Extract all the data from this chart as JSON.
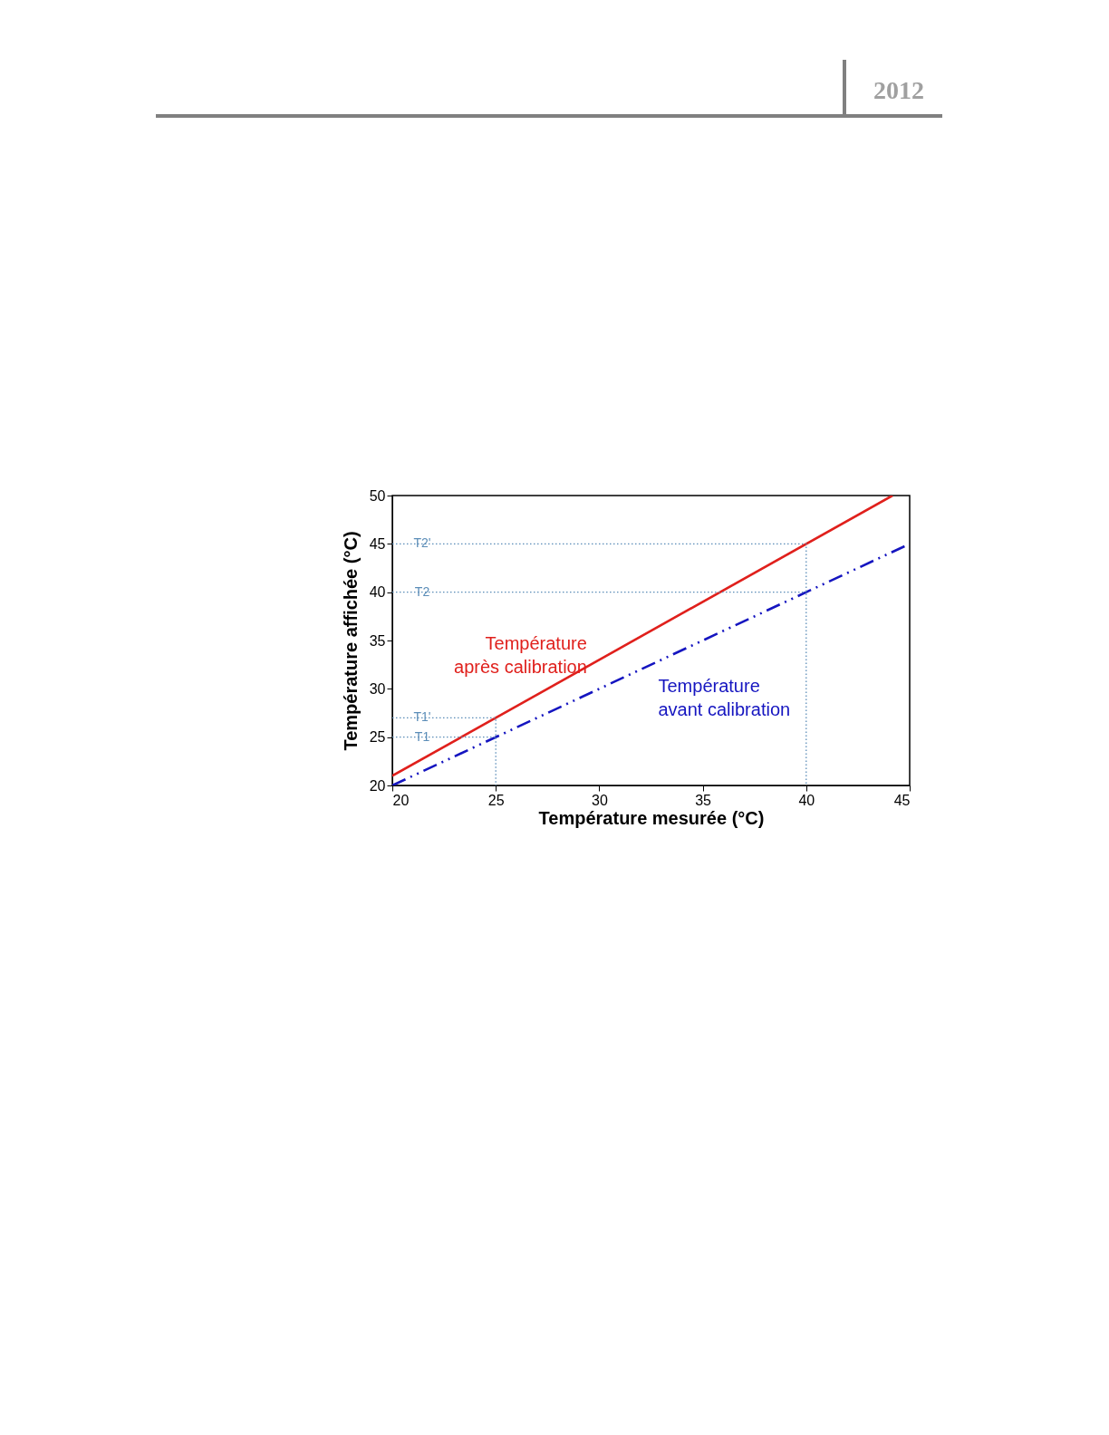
{
  "chart_data": {
    "type": "line",
    "xlabel": "Température mesurée (°C)",
    "ylabel": "Température affichée (°C)",
    "xlim": [
      20,
      45
    ],
    "ylim": [
      20,
      50
    ],
    "xticks": [
      20,
      25,
      30,
      35,
      40,
      45
    ],
    "yticks": [
      20,
      25,
      30,
      35,
      40,
      45,
      50
    ],
    "grid": false,
    "series": [
      {
        "name": "Température après calibration",
        "color": "#e0201c",
        "line_style": "solid",
        "x": [
          20,
          44.17
        ],
        "values": [
          21,
          50
        ]
      },
      {
        "name": "Température avant calibration",
        "color": "#1515c0",
        "line_style": "dashed",
        "x": [
          20,
          45
        ],
        "values": [
          20,
          45
        ]
      },
      {
        "color": "#5b8db8",
        "line_style": "dotted",
        "x": [
          20,
          40,
          40
        ],
        "values": [
          45,
          45,
          20
        ]
      },
      {
        "color": "#5b8db8",
        "line_style": "dotted",
        "x": [
          20,
          40
        ],
        "values": [
          40,
          40
        ]
      },
      {
        "color": "#5b8db8",
        "line_style": "dotted",
        "x": [
          20,
          25,
          25
        ],
        "values": [
          27,
          27,
          20
        ]
      },
      {
        "color": "#5b8db8",
        "line_style": "dotted",
        "x": [
          20,
          25
        ],
        "values": [
          25,
          25
        ]
      }
    ],
    "annotations": [
      "2012",
      {
        "text": "T2'",
        "y": 45
      },
      {
        "text": "T2",
        "y": 40
      },
      {
        "text": "T1'",
        "y": 27
      },
      {
        "text": "T1",
        "y": 25
      }
    ]
  }
}
